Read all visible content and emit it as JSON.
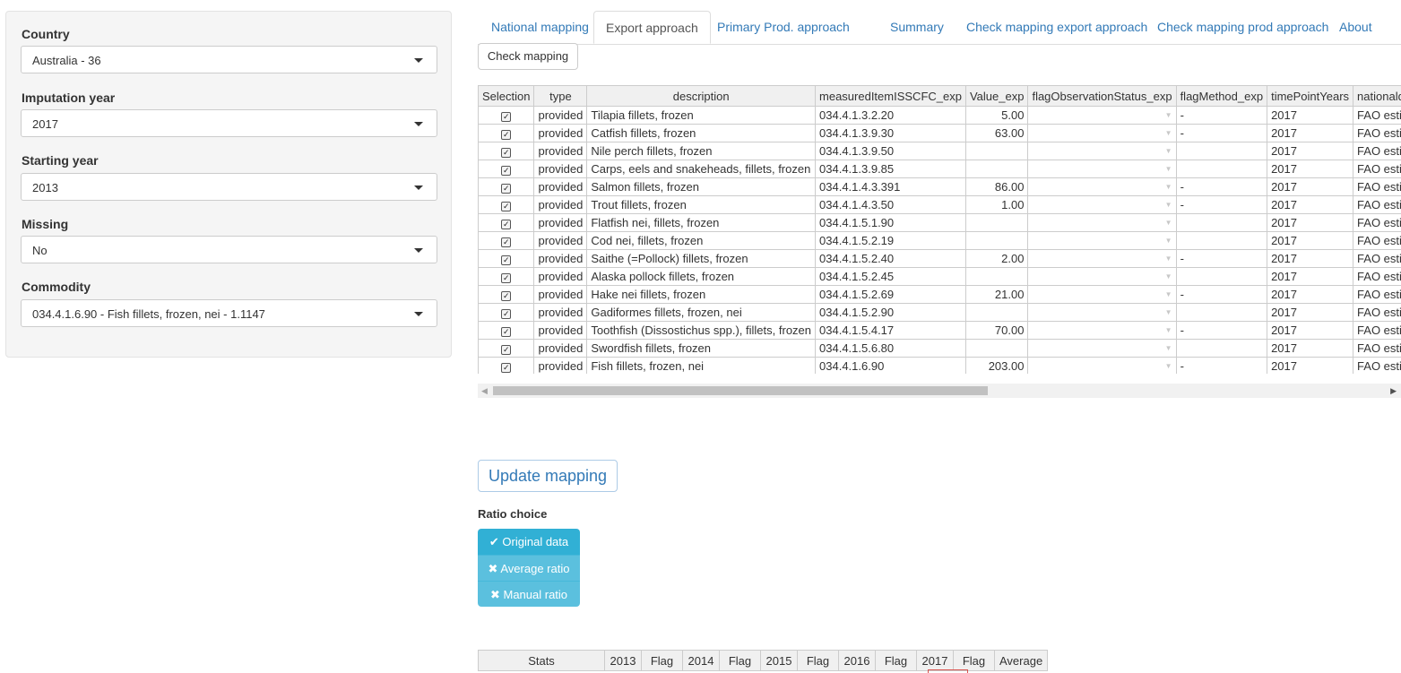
{
  "sidebar": {
    "fields": [
      {
        "label": "Country",
        "value": "Australia - 36"
      },
      {
        "label": "Imputation year",
        "value": "2017"
      },
      {
        "label": "Starting year",
        "value": "2013"
      },
      {
        "label": "Missing",
        "value": "No"
      },
      {
        "label": "Commodity",
        "value": "034.4.1.6.90 - Fish fillets, frozen, nei - 1.1147"
      }
    ]
  },
  "tabs": [
    "National mapping",
    "Export approach",
    "Primary Prod. approach",
    "Summary",
    "Check mapping export approach",
    "Check mapping prod approach",
    "About"
  ],
  "active_tab": "Export approach",
  "check_mapping_label": "Check mapping",
  "table": {
    "headers": [
      "Selection",
      "type",
      "description",
      "measuredItemISSCFC_exp",
      "Value_exp",
      "flagObservationStatus_exp",
      "flagMethod_exp",
      "timePointYears",
      "nationaldescription"
    ],
    "rows": [
      {
        "type": "provided",
        "description": "Tilapia fillets, frozen",
        "code": "034.4.1.3.2.20",
        "value": "5.00",
        "flagMethod": "-",
        "year": "2017",
        "nat": "FAO estimate"
      },
      {
        "type": "provided",
        "description": "Catfish fillets, frozen",
        "code": "034.4.1.3.9.30",
        "value": "63.00",
        "flagMethod": "-",
        "year": "2017",
        "nat": "FAO estimate"
      },
      {
        "type": "provided",
        "description": "Nile perch fillets, frozen",
        "code": "034.4.1.3.9.50",
        "value": "",
        "flagMethod": "",
        "year": "2017",
        "nat": "FAO estimate"
      },
      {
        "type": "provided",
        "description": "Carps, eels and snakeheads, fillets, frozen",
        "code": "034.4.1.3.9.85",
        "value": "",
        "flagMethod": "",
        "year": "2017",
        "nat": "FAO estimate"
      },
      {
        "type": "provided",
        "description": "Salmon fillets, frozen",
        "code": "034.4.1.4.3.391",
        "value": "86.00",
        "flagMethod": "-",
        "year": "2017",
        "nat": "FAO estimate"
      },
      {
        "type": "provided",
        "description": "Trout fillets, frozen",
        "code": "034.4.1.4.3.50",
        "value": "1.00",
        "flagMethod": "-",
        "year": "2017",
        "nat": "FAO estimate"
      },
      {
        "type": "provided",
        "description": "Flatfish nei, fillets, frozen",
        "code": "034.4.1.5.1.90",
        "value": "",
        "flagMethod": "",
        "year": "2017",
        "nat": "FAO estimate"
      },
      {
        "type": "provided",
        "description": "Cod nei, fillets, frozen",
        "code": "034.4.1.5.2.19",
        "value": "",
        "flagMethod": "",
        "year": "2017",
        "nat": "FAO estimate"
      },
      {
        "type": "provided",
        "description": "Saithe (=Pollock) fillets, frozen",
        "code": "034.4.1.5.2.40",
        "value": "2.00",
        "flagMethod": "-",
        "year": "2017",
        "nat": "FAO estimate"
      },
      {
        "type": "provided",
        "description": "Alaska pollock fillets, frozen",
        "code": "034.4.1.5.2.45",
        "value": "",
        "flagMethod": "",
        "year": "2017",
        "nat": "FAO estimate"
      },
      {
        "type": "provided",
        "description": "Hake nei fillets, frozen",
        "code": "034.4.1.5.2.69",
        "value": "21.00",
        "flagMethod": "-",
        "year": "2017",
        "nat": "FAO estimate"
      },
      {
        "type": "provided",
        "description": "Gadiformes fillets, frozen, nei",
        "code": "034.4.1.5.2.90",
        "value": "",
        "flagMethod": "",
        "year": "2017",
        "nat": "FAO estimate"
      },
      {
        "type": "provided",
        "description": "Toothfish (Dissostichus spp.), fillets, frozen",
        "code": "034.4.1.5.4.17",
        "value": "70.00",
        "flagMethod": "-",
        "year": "2017",
        "nat": "FAO estimate"
      },
      {
        "type": "provided",
        "description": "Swordfish fillets, frozen",
        "code": "034.4.1.5.6.80",
        "value": "",
        "flagMethod": "",
        "year": "2017",
        "nat": "FAO estimate"
      },
      {
        "type": "provided",
        "description": "Fish fillets, frozen, nei",
        "code": "034.4.1.6.90",
        "value": "203.00",
        "flagMethod": "-",
        "year": "2017",
        "nat": "FAO estimate"
      }
    ]
  },
  "update_mapping_label": "Update mapping",
  "ratio": {
    "label": "Ratio choice",
    "options": [
      {
        "label": "Original data",
        "selected": true
      },
      {
        "label": "Average ratio",
        "selected": false
      },
      {
        "label": "Manual ratio",
        "selected": false
      }
    ]
  },
  "stats": {
    "headers": [
      "Stats",
      "2013",
      "Flag",
      "2014",
      "Flag",
      "2015",
      "Flag",
      "2016",
      "Flag",
      "2017",
      "Flag",
      "Average"
    ]
  },
  "colors": {
    "link": "#337ab7",
    "ratio_selected": "#31b0d5",
    "ratio_unselected": "#5bc0de",
    "highlight": "#d9534f"
  }
}
